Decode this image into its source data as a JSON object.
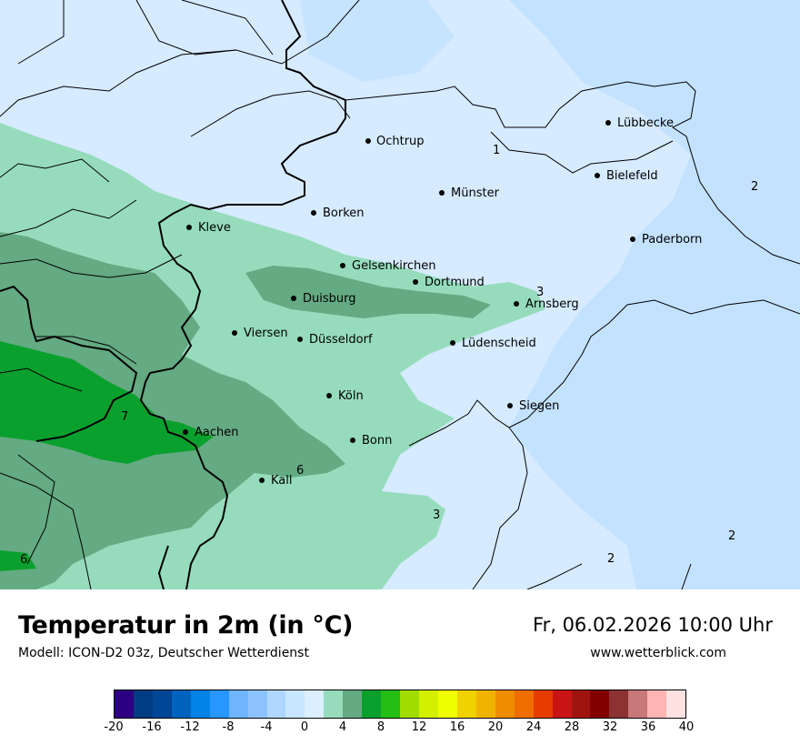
{
  "map": {
    "cities": [
      {
        "name": "Ochtrup"
      },
      {
        "name": "Lübbecke"
      },
      {
        "name": "Bielefeld"
      },
      {
        "name": "Münster"
      },
      {
        "name": "Borken"
      },
      {
        "name": "Kleve"
      },
      {
        "name": "Paderborn"
      },
      {
        "name": "Gelsenkirchen"
      },
      {
        "name": "Dortmund"
      },
      {
        "name": "Duisburg"
      },
      {
        "name": "Arnsberg"
      },
      {
        "name": "Viersen"
      },
      {
        "name": "Düsseldorf"
      },
      {
        "name": "Lüdenscheid"
      },
      {
        "name": "Köln"
      },
      {
        "name": "Siegen"
      },
      {
        "name": "Aachen"
      },
      {
        "name": "Bonn"
      },
      {
        "name": "Kall"
      }
    ],
    "isolines": [
      "1",
      "2",
      "3",
      "3",
      "7",
      "6",
      "3",
      "6",
      "2",
      "2"
    ],
    "colors": {
      "cold_1": "#d6ebff",
      "cold_0": "#c3e2ff",
      "warm_3": "#96dcbc",
      "warm_5": "#64aa82",
      "warm_7": "#0aa02e"
    }
  },
  "footer": {
    "title": "Temperatur in 2m (in °C)",
    "model": "Modell: ICON-D2 03z, Deutscher Wetterdienst",
    "datetime": "Fr, 06.02.2026 10:00 Uhr",
    "website": "www.wetterblick.com"
  },
  "legend": {
    "colors": [
      "#2d0082",
      "#003c82",
      "#004696",
      "#0064be",
      "#0082e6",
      "#2896ff",
      "#6eb4ff",
      "#8cc3ff",
      "#afd7ff",
      "#c8e6ff",
      "#dcefff",
      "#96dcbc",
      "#64aa82",
      "#0aa02e",
      "#24be14",
      "#a0dc00",
      "#d2f000",
      "#f0ff00",
      "#f0d200",
      "#f0b400",
      "#f08c00",
      "#f06e00",
      "#e63c00",
      "#c81414",
      "#a0140f",
      "#820000",
      "#8c3232",
      "#c87878",
      "#ffb4b4",
      "#ffe1e1"
    ],
    "ticks": [
      "-20",
      "-16",
      "-12",
      "-8",
      "-4",
      "0",
      "4",
      "8",
      "12",
      "16",
      "20",
      "24",
      "28",
      "32",
      "36",
      "40"
    ]
  }
}
